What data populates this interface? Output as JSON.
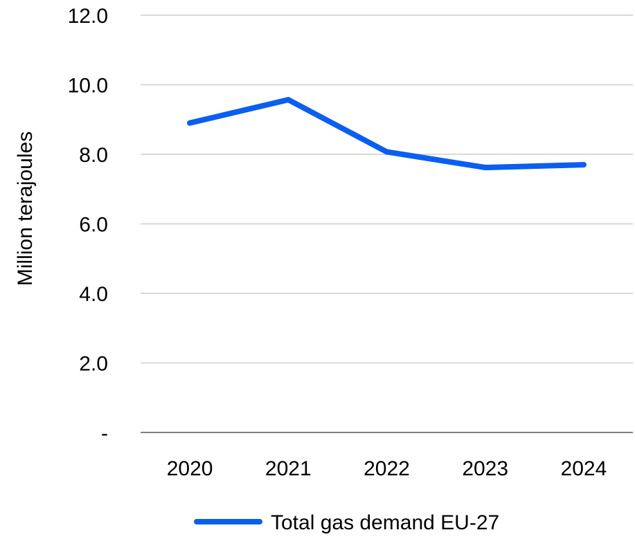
{
  "chart_data": {
    "type": "line",
    "categories": [
      "2020",
      "2021",
      "2022",
      "2023",
      "2024"
    ],
    "y_tick_labels": [
      "-",
      "2.0",
      "4.0",
      "6.0",
      "8.0",
      "10.0",
      "12.0"
    ],
    "y_tick_values": [
      0,
      2,
      4,
      6,
      8,
      10,
      12
    ],
    "ylim": [
      0,
      12
    ],
    "ylabel": "Million terajoules",
    "xlabel": "",
    "grid": true,
    "legend_position": "bottom",
    "series": [
      {
        "name": "Total gas demand EU-27",
        "color": "#0a5ff0",
        "values": [
          8.9,
          9.57,
          8.07,
          7.62,
          7.7
        ]
      }
    ]
  }
}
